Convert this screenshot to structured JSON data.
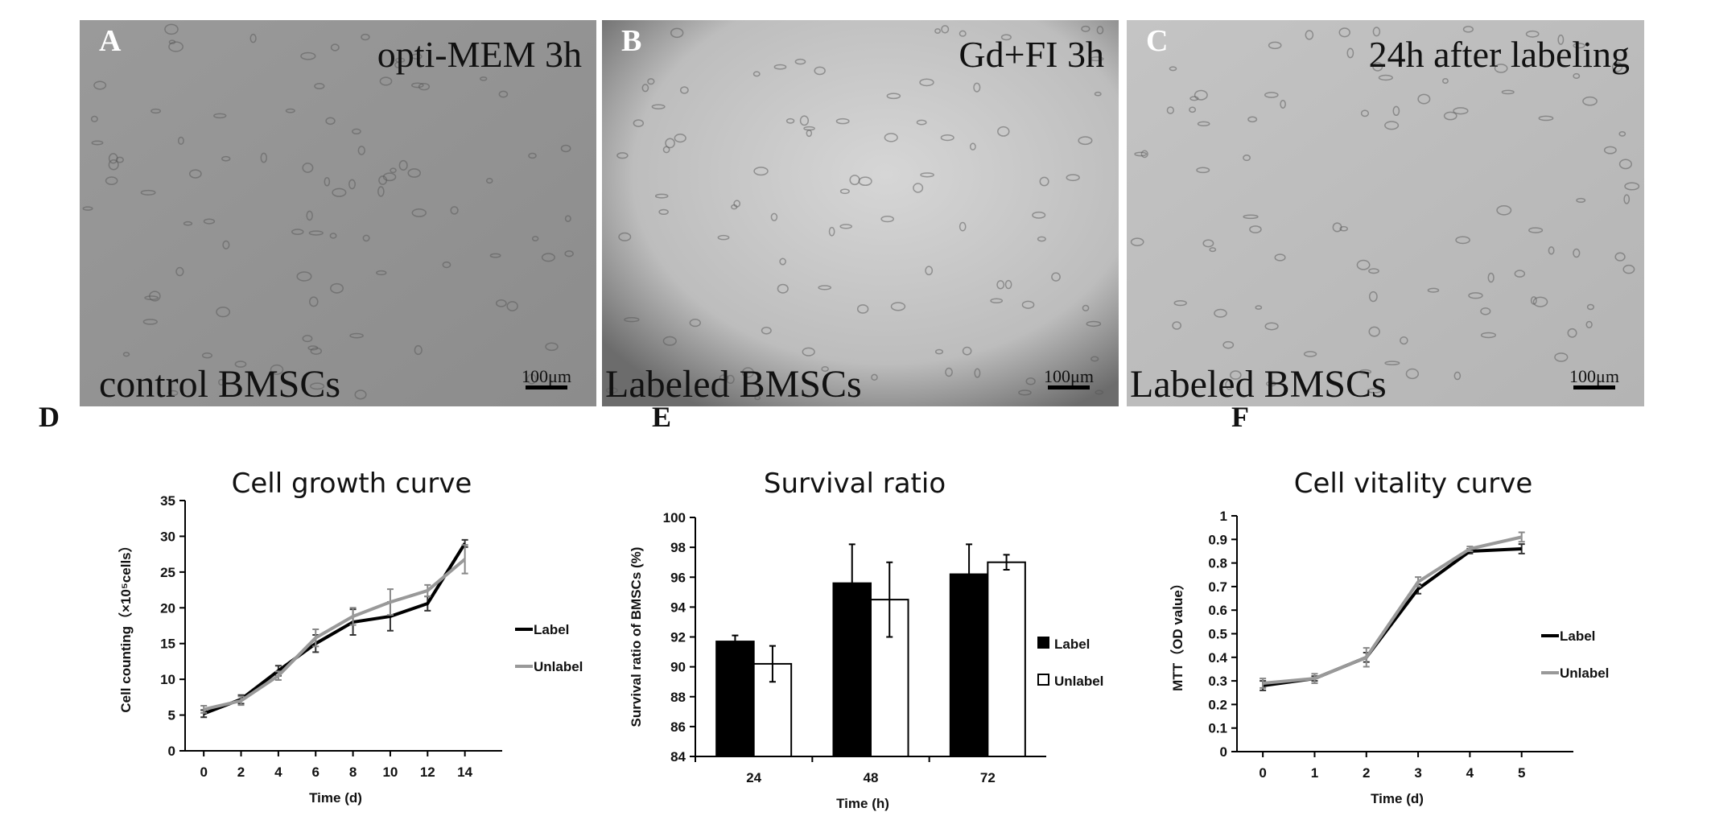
{
  "panels": [
    {
      "letter": "A",
      "title": "opti-MEM 3h",
      "caption": "control BMSCs",
      "scale": "100μm"
    },
    {
      "letter": "B",
      "title": "Gd+FI 3h",
      "caption": "Labeled BMSCs",
      "scale": "100μm"
    },
    {
      "letter": "C",
      "title": "24h after labeling",
      "caption": "Labeled BMSCs",
      "scale": "100μm"
    }
  ],
  "chart_data": [
    {
      "type": "line",
      "letter": "D",
      "title": "Cell growth curve",
      "xlabel": "Time (d)",
      "ylabel": "Cell counting（×10⁵cells）",
      "categories": [
        "0",
        "2",
        "4",
        "6",
        "8",
        "10",
        "12",
        "14"
      ],
      "series": [
        {
          "name": "Label",
          "color": "#000000",
          "values": [
            5.2,
            7.2,
            11.2,
            15,
            18,
            18.8,
            20.6,
            29
          ],
          "errors": [
            0.5,
            0.6,
            0.7,
            1.2,
            1.8,
            2,
            1,
            0.5
          ]
        },
        {
          "name": "Unlabel",
          "color": "#999999",
          "values": [
            5.8,
            7,
            10.5,
            15.8,
            18.8,
            20.8,
            22.4,
            26.8
          ],
          "errors": [
            0.5,
            0.6,
            0.6,
            1.2,
            1.2,
            1.8,
            0.8,
            2
          ]
        }
      ],
      "ylim": [
        0,
        35
      ],
      "yticks": [
        0,
        5,
        10,
        15,
        20,
        25,
        30,
        35
      ],
      "legend": "right"
    },
    {
      "type": "bar",
      "letter": "E",
      "title": "Survival ratio",
      "xlabel": "Time (h)",
      "ylabel": "Survival ratio of BMSCs (%)",
      "categories": [
        "24",
        "48",
        "72"
      ],
      "series": [
        {
          "name": "Label",
          "color": "#000000",
          "values": [
            91.7,
            95.6,
            96.2
          ],
          "errors": [
            0.4,
            2.6,
            2
          ]
        },
        {
          "name": "Unlabel",
          "color": "#ffffff",
          "values": [
            90.2,
            94.5,
            97
          ],
          "errors": [
            1.2,
            2.5,
            0.5
          ]
        }
      ],
      "ylim": [
        84,
        100
      ],
      "yticks": [
        84,
        86,
        88,
        90,
        92,
        94,
        96,
        98,
        100
      ],
      "legend": "right"
    },
    {
      "type": "line",
      "letter": "F",
      "title": "Cell vitality curve",
      "xlabel": "Time (d)",
      "ylabel": "MTT（OD value）",
      "categories": [
        "0",
        "1",
        "2",
        "3",
        "4",
        "5"
      ],
      "series": [
        {
          "name": "Label",
          "color": "#000000",
          "values": [
            0.28,
            0.31,
            0.4,
            0.69,
            0.85,
            0.86
          ],
          "errors": [
            0.02,
            0.01,
            0.02,
            0.02,
            0.01,
            0.02
          ]
        },
        {
          "name": "Unlabel",
          "color": "#999999",
          "values": [
            0.29,
            0.31,
            0.4,
            0.72,
            0.86,
            0.91
          ],
          "errors": [
            0.02,
            0.02,
            0.04,
            0.02,
            0.01,
            0.02
          ]
        }
      ],
      "ylim": [
        0,
        1
      ],
      "yticks": [
        0,
        0.1,
        0.2,
        0.3,
        0.4,
        0.5,
        0.6,
        0.7,
        0.8,
        0.9,
        1
      ],
      "legend": "right"
    }
  ]
}
